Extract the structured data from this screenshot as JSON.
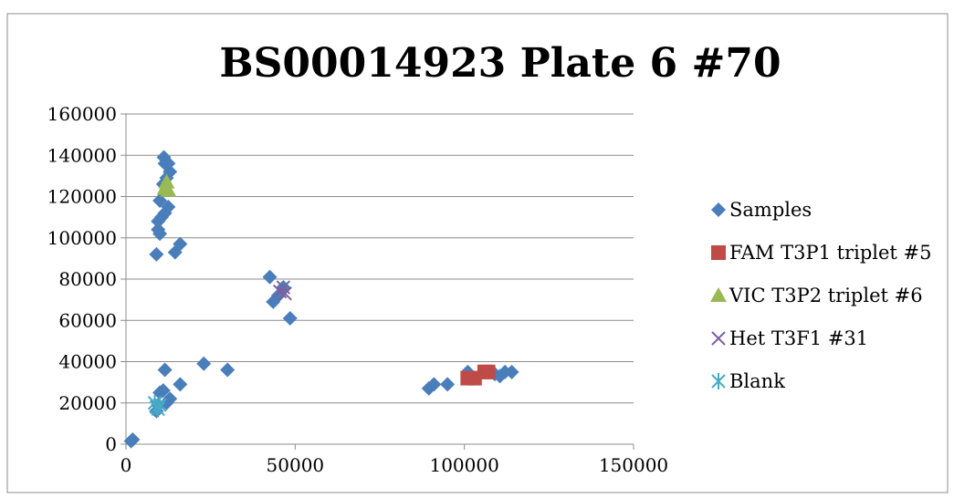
{
  "chart_data": {
    "type": "scatter",
    "title": "BS00014923 Plate 6 #70",
    "xlabel": "",
    "ylabel": "",
    "xlim": [
      0,
      150000
    ],
    "ylim": [
      0,
      160000
    ],
    "xticks": [
      0,
      50000,
      100000,
      150000
    ],
    "yticks": [
      0,
      20000,
      40000,
      60000,
      80000,
      100000,
      120000,
      140000,
      160000
    ],
    "xtick_labels": [
      "0",
      "50000",
      "100000",
      "150000"
    ],
    "ytick_labels": [
      "0",
      "20000",
      "40000",
      "60000",
      "80000",
      "100000",
      "120000",
      "140000",
      "160000"
    ],
    "grid": "horizontal",
    "legend_position": "right",
    "series": [
      {
        "name": "Samples",
        "marker": "diamond",
        "color": "#4a7ebb",
        "points": [
          [
            1500,
            1500
          ],
          [
            2000,
            2200
          ],
          [
            9000,
            16000
          ],
          [
            9500,
            19000
          ],
          [
            10000,
            25000
          ],
          [
            11000,
            26000
          ],
          [
            12000,
            20000
          ],
          [
            13000,
            22000
          ],
          [
            11500,
            36000
          ],
          [
            16000,
            29000
          ],
          [
            23000,
            39000
          ],
          [
            30000,
            36000
          ],
          [
            9000,
            92000
          ],
          [
            9500,
            104000
          ],
          [
            10000,
            102000
          ],
          [
            9500,
            108000
          ],
          [
            10500,
            110000
          ],
          [
            10000,
            118000
          ],
          [
            11500,
            112000
          ],
          [
            12500,
            115000
          ],
          [
            11000,
            126000
          ],
          [
            12000,
            129000
          ],
          [
            13000,
            132000
          ],
          [
            11500,
            136000
          ],
          [
            11200,
            139000
          ],
          [
            12500,
            136000
          ],
          [
            14500,
            93000
          ],
          [
            16000,
            97000
          ],
          [
            42500,
            81000
          ],
          [
            43500,
            69000
          ],
          [
            45000,
            72000
          ],
          [
            46500,
            76000
          ],
          [
            48500,
            61000
          ],
          [
            89500,
            27000
          ],
          [
            91000,
            29000
          ],
          [
            95000,
            29000
          ],
          [
            101000,
            35000
          ],
          [
            109000,
            34000
          ],
          [
            110500,
            33000
          ],
          [
            112000,
            35000
          ],
          [
            114000,
            35000
          ]
        ]
      },
      {
        "name": "FAM T3P1 triplet #5",
        "marker": "square",
        "color": "#be4b48",
        "points": [
          [
            101000,
            32000
          ],
          [
            103000,
            32000
          ],
          [
            106000,
            35000
          ],
          [
            107000,
            35000
          ]
        ]
      },
      {
        "name": "VIC T3P2 triplet #6",
        "marker": "triangle",
        "color": "#98b954",
        "points": [
          [
            12000,
            127000
          ],
          [
            11500,
            124000
          ],
          [
            12500,
            123000
          ]
        ]
      },
      {
        "name": "Het T3F1 #31",
        "marker": "x",
        "color": "#7d60a0",
        "points": [
          [
            45500,
            74000
          ],
          [
            46500,
            76000
          ],
          [
            47000,
            73000
          ]
        ]
      },
      {
        "name": "Blank",
        "marker": "star",
        "color": "#46aac5",
        "points": [
          [
            9000,
            18000
          ],
          [
            10000,
            19000
          ],
          [
            9500,
            17000
          ],
          [
            8500,
            20000
          ]
        ]
      }
    ]
  }
}
